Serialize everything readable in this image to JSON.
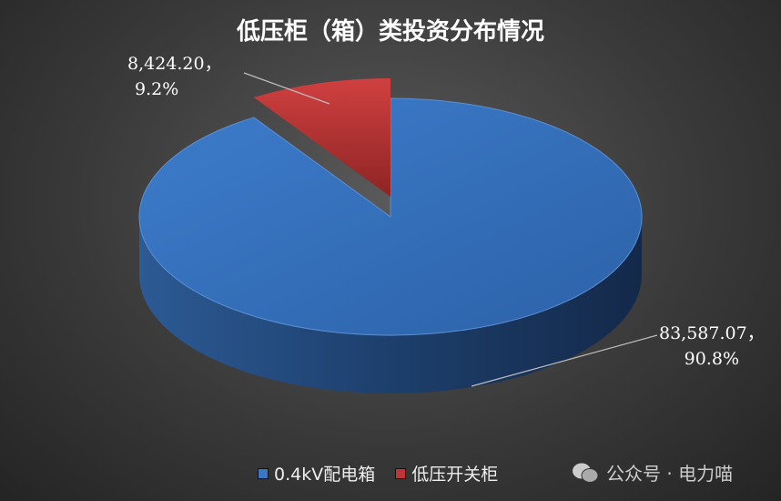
{
  "chart_data": {
    "type": "pie",
    "title": "低压柜（箱）类投资分布情况",
    "categories": [
      "0.4kV配电箱",
      "低压开关柜"
    ],
    "values": [
      83587.07,
      8424.2
    ],
    "percent": [
      90.8,
      9.2
    ],
    "data_labels": [
      [
        "83,587.07，",
        "90.8%"
      ],
      [
        "8,424.20，",
        "9.2%"
      ]
    ],
    "colors": [
      "#3a78c4",
      "#c03535"
    ],
    "legend_position": "bottom",
    "style": "3d"
  },
  "watermark": {
    "text": "公众号 · 电力喵",
    "icon": "wechat-icon"
  }
}
